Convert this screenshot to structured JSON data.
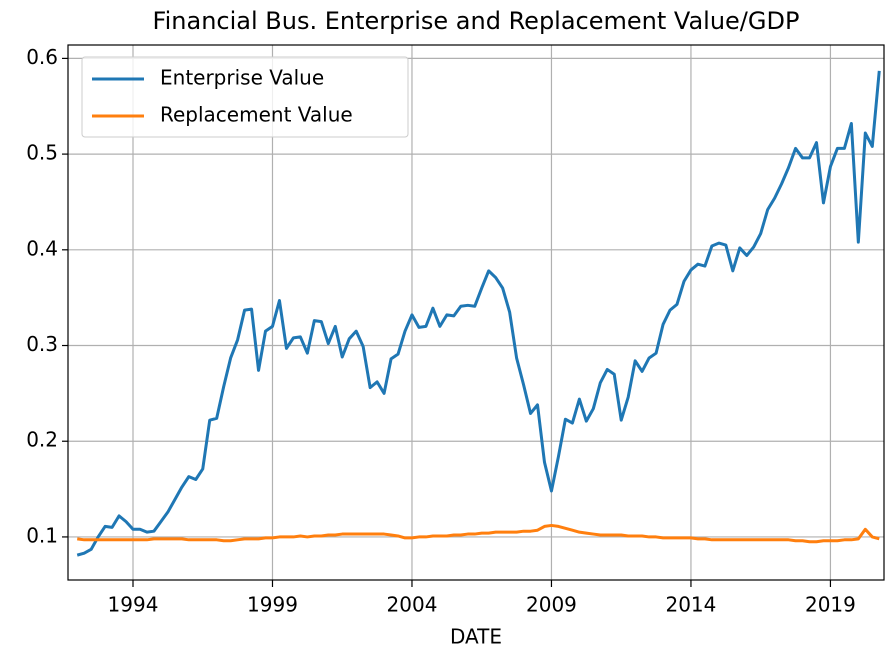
{
  "chart_data": {
    "type": "line",
    "title": "Financial Bus. Enterprise and Replacement Value/GDP",
    "xlabel": "DATE",
    "x": [
      1992,
      1992.25,
      1992.5,
      1992.75,
      1993,
      1993.25,
      1993.5,
      1993.75,
      1994,
      1994.25,
      1994.5,
      1994.75,
      1995,
      1995.25,
      1995.5,
      1995.75,
      1996,
      1996.25,
      1996.5,
      1996.75,
      1997,
      1997.25,
      1997.5,
      1997.75,
      1998,
      1998.25,
      1998.5,
      1998.75,
      1999,
      1999.25,
      1999.5,
      1999.75,
      2000,
      2000.25,
      2000.5,
      2000.75,
      2001,
      2001.25,
      2001.5,
      2001.75,
      2002,
      2002.25,
      2002.5,
      2002.75,
      2003,
      2003.25,
      2003.5,
      2003.75,
      2004,
      2004.25,
      2004.5,
      2004.75,
      2005,
      2005.25,
      2005.5,
      2005.75,
      2006,
      2006.25,
      2006.5,
      2006.75,
      2007,
      2007.25,
      2007.5,
      2007.75,
      2008,
      2008.25,
      2008.5,
      2008.75,
      2009,
      2009.25,
      2009.5,
      2009.75,
      2010,
      2010.25,
      2010.5,
      2010.75,
      2011,
      2011.25,
      2011.5,
      2011.75,
      2012,
      2012.25,
      2012.5,
      2012.75,
      2013,
      2013.25,
      2013.5,
      2013.75,
      2014,
      2014.25,
      2014.5,
      2014.75,
      2015,
      2015.25,
      2015.5,
      2015.75,
      2016,
      2016.25,
      2016.5,
      2016.75,
      2017,
      2017.25,
      2017.5,
      2017.75,
      2018,
      2018.25,
      2018.5,
      2018.75,
      2019,
      2019.25,
      2019.5,
      2019.75,
      2020,
      2020.25,
      2020.5,
      2020.75
    ],
    "series": [
      {
        "name": "Enterprise Value",
        "color": "#1f77b4",
        "values": [
          0.081,
          0.083,
          0.087,
          0.1,
          0.111,
          0.11,
          0.122,
          0.116,
          0.108,
          0.108,
          0.105,
          0.106,
          0.116,
          0.126,
          0.139,
          0.152,
          0.163,
          0.16,
          0.171,
          0.222,
          0.224,
          0.257,
          0.287,
          0.306,
          0.337,
          0.338,
          0.274,
          0.315,
          0.32,
          0.347,
          0.297,
          0.308,
          0.309,
          0.292,
          0.326,
          0.325,
          0.302,
          0.32,
          0.288,
          0.307,
          0.315,
          0.299,
          0.256,
          0.262,
          0.25,
          0.286,
          0.291,
          0.315,
          0.332,
          0.319,
          0.32,
          0.339,
          0.32,
          0.332,
          0.331,
          0.341,
          0.342,
          0.341,
          0.36,
          0.378,
          0.371,
          0.36,
          0.335,
          0.287,
          0.259,
          0.229,
          0.238,
          0.178,
          0.148,
          0.184,
          0.223,
          0.219,
          0.244,
          0.221,
          0.234,
          0.261,
          0.275,
          0.27,
          0.222,
          0.246,
          0.284,
          0.273,
          0.287,
          0.292,
          0.322,
          0.337,
          0.343,
          0.367,
          0.379,
          0.385,
          0.383,
          0.404,
          0.407,
          0.405,
          0.378,
          0.402,
          0.394,
          0.403,
          0.417,
          0.442,
          0.454,
          0.469,
          0.486,
          0.506,
          0.496,
          0.496,
          0.512,
          0.449,
          0.487,
          0.506,
          0.506,
          0.532,
          0.408,
          0.522,
          0.508,
          0.587
        ]
      },
      {
        "name": "Replacement Value",
        "color": "#ff7f0e",
        "values": [
          0.098,
          0.097,
          0.097,
          0.097,
          0.097,
          0.097,
          0.097,
          0.097,
          0.097,
          0.097,
          0.097,
          0.098,
          0.098,
          0.098,
          0.098,
          0.098,
          0.097,
          0.097,
          0.097,
          0.097,
          0.097,
          0.096,
          0.096,
          0.097,
          0.098,
          0.098,
          0.098,
          0.099,
          0.099,
          0.1,
          0.1,
          0.1,
          0.101,
          0.1,
          0.101,
          0.101,
          0.102,
          0.102,
          0.103,
          0.103,
          0.103,
          0.103,
          0.103,
          0.103,
          0.103,
          0.102,
          0.101,
          0.099,
          0.099,
          0.1,
          0.1,
          0.101,
          0.101,
          0.101,
          0.102,
          0.102,
          0.103,
          0.103,
          0.104,
          0.104,
          0.105,
          0.105,
          0.105,
          0.105,
          0.106,
          0.106,
          0.107,
          0.111,
          0.112,
          0.111,
          0.109,
          0.107,
          0.105,
          0.104,
          0.103,
          0.102,
          0.102,
          0.102,
          0.102,
          0.101,
          0.101,
          0.101,
          0.1,
          0.1,
          0.099,
          0.099,
          0.099,
          0.099,
          0.099,
          0.098,
          0.098,
          0.097,
          0.097,
          0.097,
          0.097,
          0.097,
          0.097,
          0.097,
          0.097,
          0.097,
          0.097,
          0.097,
          0.097,
          0.096,
          0.096,
          0.095,
          0.095,
          0.096,
          0.096,
          0.096,
          0.097,
          0.097,
          0.098,
          0.108,
          0.1,
          0.098
        ]
      }
    ],
    "xlim": [
      1991.67,
      2020.92
    ],
    "xticks": [
      1994,
      1999,
      2004,
      2009,
      2014,
      2019
    ],
    "ylim": [
      0.055,
      0.614
    ],
    "yticks": [
      0.1,
      0.2,
      0.3,
      0.4,
      0.5,
      0.6
    ],
    "grid": true,
    "legend": "upper left"
  }
}
